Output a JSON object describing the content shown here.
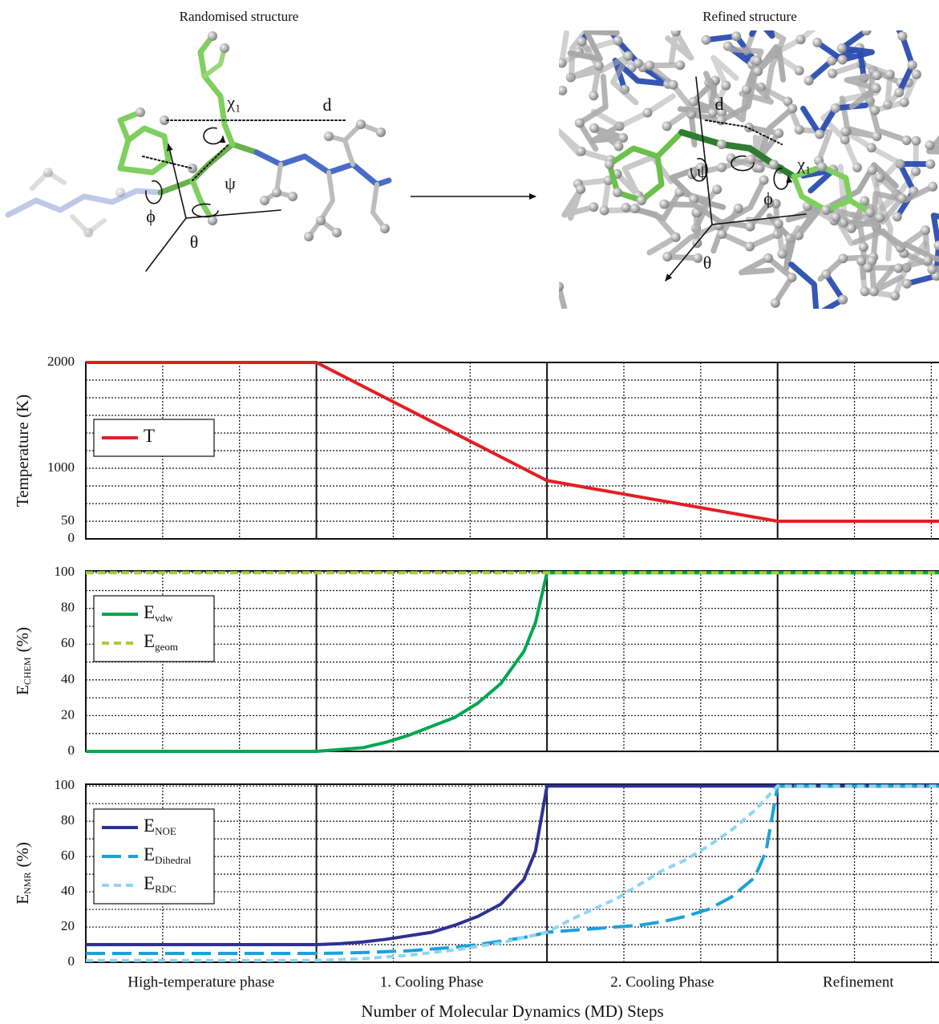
{
  "panels": [
    {
      "title": "Randomised structure",
      "labels": [
        "χ₁",
        "d",
        "ψ",
        "ϕ",
        "θ"
      ]
    },
    {
      "title": "Refined structure",
      "labels": [
        "d",
        "ψ",
        "χ₁",
        "ϕ",
        "θ"
      ]
    }
  ],
  "chart_data": [
    {
      "type": "line",
      "ylabel": "Temperature (K)",
      "xlim": [
        0,
        3.7
      ],
      "ylim": [
        0,
        2000
      ],
      "yticks": [
        0,
        50,
        1000,
        2000
      ],
      "grid": true,
      "legend": "upper left",
      "x": [
        0,
        1,
        2,
        3,
        3.7
      ],
      "series": [
        {
          "name": "T",
          "color": "#e31e24",
          "dash": "solid",
          "values": [
            2000,
            2000,
            780,
            50,
            50
          ]
        }
      ]
    },
    {
      "type": "line",
      "ylabel": "E",
      "ylabel_sub": "CHEM",
      "ylabel_unit": "(%)",
      "xlim": [
        0,
        3.7
      ],
      "ylim": [
        0,
        101
      ],
      "yticks": [
        0,
        20,
        40,
        60,
        80,
        100
      ],
      "grid": true,
      "legend": "upper left",
      "x": [
        0,
        1,
        1.1,
        1.2,
        1.3,
        1.4,
        1.5,
        1.6,
        1.7,
        1.8,
        1.9,
        1.95,
        2,
        3.7
      ],
      "series": [
        {
          "name": "E",
          "subscript": "vdw",
          "color": "#00a651",
          "dash": "solid",
          "values": [
            0,
            0,
            1,
            2,
            5,
            9,
            14,
            19,
            27,
            38,
            56,
            72,
            100,
            100
          ]
        },
        {
          "name": "E",
          "subscript": "geom",
          "color": "#a6ce39",
          "dash": "short",
          "values": [
            100,
            100,
            100,
            100,
            100,
            100,
            100,
            100,
            100,
            100,
            100,
            100,
            100,
            100
          ]
        }
      ]
    },
    {
      "type": "line",
      "ylabel": "E",
      "ylabel_sub": "NMR",
      "ylabel_unit": "(%)",
      "xlim": [
        0,
        3.7
      ],
      "ylim": [
        0,
        101
      ],
      "yticks": [
        0,
        20,
        40,
        60,
        80,
        100
      ],
      "grid": true,
      "legend": "upper left",
      "categories": [
        "High-temperature phase",
        "1. Cooling Phase",
        "2. Cooling Phase",
        "Refinement"
      ],
      "xlabel": "Number of Molecular Dynamics (MD) Steps",
      "x": [
        0,
        1,
        1.1,
        1.2,
        1.3,
        1.4,
        1.5,
        1.6,
        1.7,
        1.8,
        1.9,
        1.95,
        2,
        2.1,
        2.2,
        2.3,
        2.4,
        2.5,
        2.6,
        2.7,
        2.8,
        2.9,
        2.95,
        3,
        3.7
      ],
      "series": [
        {
          "name": "E",
          "subscript": "NOE",
          "color": "#2e3192",
          "dash": "solid",
          "values": [
            10,
            10,
            10.5,
            11.5,
            13,
            15,
            17,
            21,
            26,
            33,
            47,
            63,
            100,
            100,
            100,
            100,
            100,
            100,
            100,
            100,
            100,
            100,
            100,
            100,
            100
          ]
        },
        {
          "name": "E",
          "subscript": "Dihedral",
          "color": "#1ba1db",
          "dash": "long",
          "values": [
            5,
            5,
            5.2,
            5.5,
            6,
            6.5,
            7.5,
            8.5,
            10,
            12,
            14,
            15.5,
            17,
            18,
            19,
            20,
            21,
            23,
            26,
            30,
            37,
            48,
            63,
            100,
            100
          ]
        },
        {
          "name": "E",
          "subscript": "RDC",
          "color": "#8fd4f3",
          "dash": "short",
          "values": [
            1,
            1,
            1.5,
            2,
            3,
            4,
            5.5,
            7,
            9,
            11,
            14,
            15.5,
            17,
            24,
            30,
            36,
            44,
            52,
            58,
            66,
            75,
            86,
            93,
            100,
            100
          ]
        }
      ]
    }
  ]
}
